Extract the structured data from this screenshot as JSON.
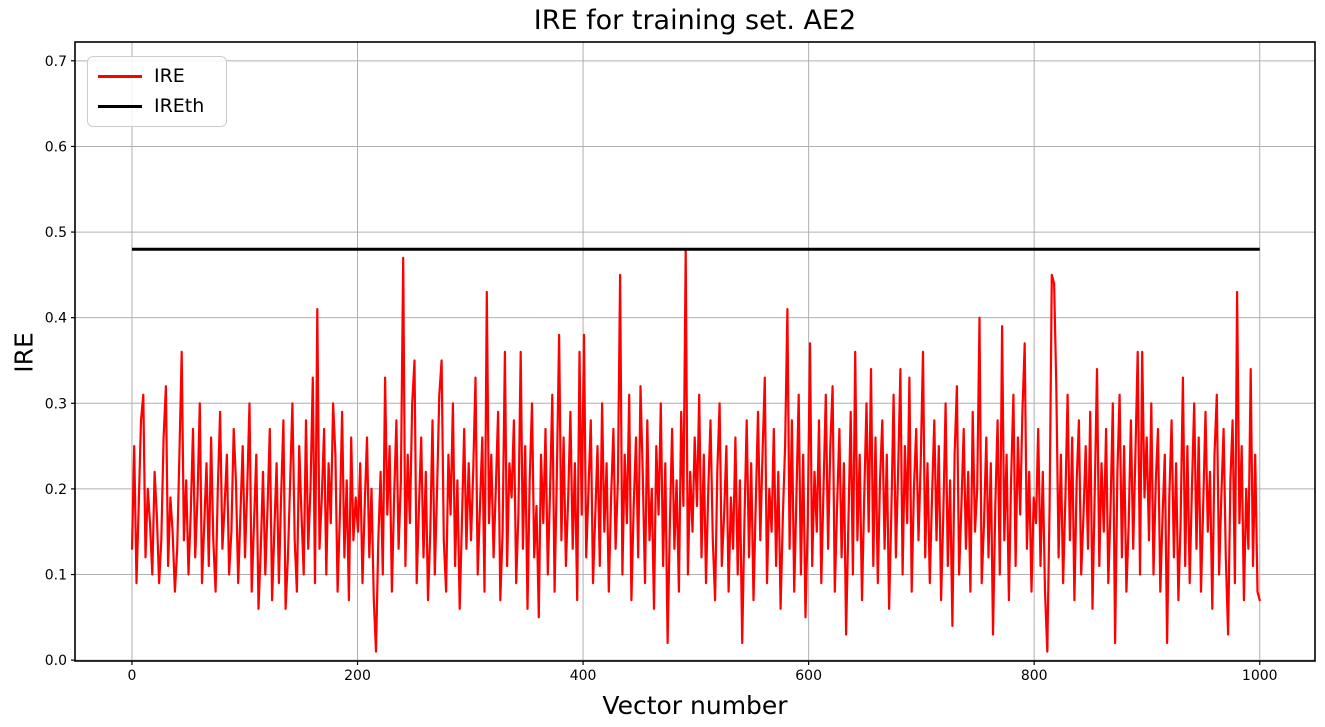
{
  "chart_data": {
    "type": "line",
    "title": "IRE for training set. AE2",
    "xlabel": "Vector number",
    "ylabel": "IRE",
    "grid": true,
    "grid_color": "#b0b0b0",
    "background": "#ffffff",
    "legend_position": "upper left",
    "xlim": [
      -50.5,
      1049
    ],
    "ylim": [
      -0.001,
      0.722
    ],
    "x_ticks": [
      0,
      200,
      400,
      600,
      800,
      1000
    ],
    "x_tick_labels": [
      "0",
      "200",
      "400",
      "600",
      "800",
      "1000"
    ],
    "y_ticks": [
      0.0,
      0.1,
      0.2,
      0.3,
      0.4,
      0.5,
      0.6,
      0.7
    ],
    "y_tick_labels": [
      "0.0",
      "0.1",
      "0.2",
      "0.3",
      "0.4",
      "0.5",
      "0.6",
      "0.7"
    ],
    "series": [
      {
        "name": "IRE",
        "color": "#ff0000",
        "line_width": 2.2,
        "x_start": 0,
        "x_end": 1000,
        "values_scale": 0.01,
        "values_x100": [
          13,
          25,
          9,
          18,
          28,
          31,
          12,
          20,
          16,
          10,
          22,
          17,
          9,
          14,
          26,
          32,
          11,
          19,
          15,
          8,
          13,
          24,
          36,
          14,
          21,
          10,
          17,
          27,
          12,
          19,
          30,
          9,
          16,
          23,
          11,
          26,
          14,
          8,
          20,
          29,
          13,
          18,
          24,
          10,
          15,
          27,
          21,
          9,
          17,
          25,
          12,
          20,
          30,
          8,
          16,
          24,
          6,
          13,
          22,
          10,
          18,
          27,
          7,
          15,
          23,
          9,
          19,
          28,
          6,
          12,
          21,
          30,
          14,
          8,
          25,
          17,
          10,
          28,
          13,
          20,
          33,
          9,
          41,
          13,
          19,
          27,
          10,
          23,
          16,
          30,
          24,
          8,
          17,
          29,
          12,
          21,
          7,
          26,
          14,
          19,
          15,
          23,
          9,
          18,
          26,
          12,
          20,
          7,
          1,
          14,
          22,
          10,
          33,
          17,
          25,
          8,
          19,
          28,
          13,
          21,
          47,
          11,
          24,
          16,
          30,
          35,
          9,
          18,
          26,
          12,
          22,
          7,
          15,
          28,
          10,
          20,
          31,
          35,
          14,
          8,
          24,
          17,
          30,
          11,
          21,
          6,
          16,
          27,
          13,
          23,
          14,
          22,
          33,
          10,
          18,
          26,
          8,
          43,
          16,
          24,
          12,
          20,
          29,
          7,
          15,
          36,
          11,
          23,
          19,
          28,
          9,
          17,
          36,
          13,
          25,
          6,
          21,
          30,
          12,
          18,
          5,
          24,
          16,
          27,
          10,
          20,
          31,
          8,
          22,
          38,
          14,
          26,
          11,
          19,
          29,
          13,
          23,
          7,
          36,
          17,
          38,
          12,
          20,
          28,
          9,
          17,
          25,
          11,
          30,
          15,
          23,
          8,
          19,
          27,
          13,
          21,
          45,
          10,
          24,
          16,
          31,
          7,
          18,
          26,
          12,
          32,
          22,
          9,
          28,
          14,
          20,
          6,
          25,
          17,
          30,
          11,
          23,
          2,
          16,
          27,
          13,
          21,
          8,
          29,
          18,
          48,
          10,
          22,
          15,
          26,
          18,
          31,
          12,
          24,
          9,
          20,
          28,
          14,
          7,
          22,
          30,
          11,
          17,
          25,
          8,
          19,
          13,
          26,
          10,
          21,
          2,
          16,
          28,
          12,
          23,
          7,
          18,
          29,
          14,
          24,
          33,
          9,
          20,
          15,
          27,
          11,
          22,
          6,
          17,
          25,
          41,
          13,
          28,
          8,
          19,
          31,
          10,
          24,
          5,
          16,
          37,
          11,
          22,
          15,
          28,
          9,
          20,
          31,
          13,
          25,
          32,
          8,
          18,
          27,
          12,
          23,
          3,
          16,
          29,
          10,
          36,
          14,
          24,
          7,
          19,
          30,
          15,
          34,
          11,
          26,
          9,
          21,
          28,
          13,
          24,
          6,
          17,
          31,
          12,
          22,
          34,
          10,
          25,
          16,
          33,
          8,
          20,
          27,
          14,
          23,
          36,
          12,
          23,
          9,
          19,
          28,
          14,
          25,
          7,
          17,
          30,
          11,
          21,
          4,
          24,
          32,
          10,
          18,
          27,
          13,
          22,
          8,
          29,
          15,
          20,
          40,
          9,
          16,
          26,
          12,
          23,
          3,
          18,
          28,
          10,
          39,
          14,
          24,
          7,
          21,
          31,
          11,
          26,
          17,
          29,
          37,
          13,
          22,
          8,
          19,
          16,
          27,
          11,
          22,
          8,
          1,
          18,
          45,
          44,
          32,
          12,
          24,
          9,
          19,
          31,
          14,
          26,
          7,
          21,
          28,
          10,
          17,
          25,
          13,
          29,
          6,
          20,
          34,
          11,
          23,
          15,
          27,
          9,
          18,
          30,
          2,
          22,
          31,
          12,
          25,
          8,
          16,
          28,
          13,
          24,
          36,
          10,
          36,
          19,
          26,
          14,
          30,
          10,
          21,
          27,
          8,
          17,
          24,
          2,
          19,
          28,
          12,
          23,
          7,
          16,
          33,
          11,
          25,
          9,
          20,
          30,
          13,
          26,
          8,
          18,
          29,
          15,
          22,
          6,
          24,
          31,
          10,
          19,
          27,
          12,
          3,
          21,
          28,
          9,
          43,
          16,
          25,
          7,
          20,
          13,
          34,
          11,
          24,
          8,
          7
        ]
      },
      {
        "name": "IREth",
        "type": "hline",
        "color": "#000000",
        "line_width": 3,
        "y": 0.48,
        "x_start": 0,
        "x_end": 1000
      }
    ]
  },
  "legend": {
    "items": [
      {
        "label": "IRE",
        "color": "#ff0000"
      },
      {
        "label": "IREth",
        "color": "#000000"
      }
    ]
  }
}
